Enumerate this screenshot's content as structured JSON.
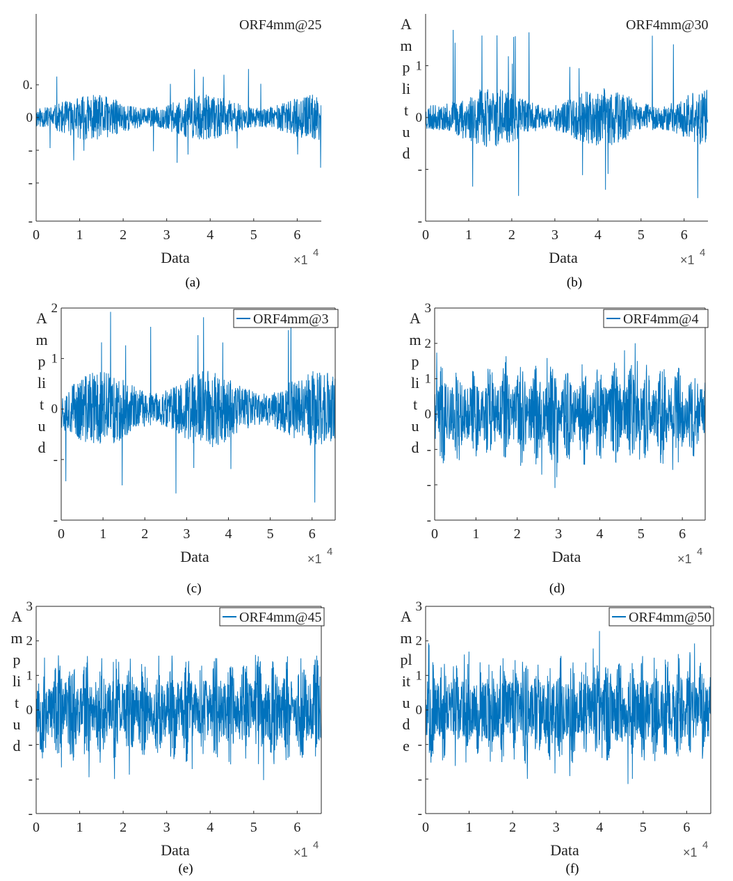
{
  "chart_data": [
    {
      "type": "line",
      "caption": "(a)",
      "series": [
        {
          "name": "ORF4mm@25"
        }
      ],
      "legend_box": false,
      "xlabel": "Data",
      "x_multiplier": "×1",
      "x_exponent": "4",
      "ylabel_letters": [],
      "xlim": [
        0,
        65536
      ],
      "x_ticks": [
        0,
        1,
        2,
        3,
        4,
        5,
        6
      ],
      "x_tick_labels": [
        "0",
        "1",
        "2",
        "3",
        "4",
        "5",
        "6"
      ],
      "ylim": [
        -1.9,
        1.9
      ],
      "y_ticks": [
        0.6,
        0,
        -0.6,
        -1.2,
        -1.9
      ],
      "y_tick_labels": [
        "0.",
        "0",
        "-",
        "-",
        "-"
      ],
      "signal": {
        "seed": 11,
        "base": 0.22,
        "peak": 0.95,
        "burst_period": 0
      }
    },
    {
      "type": "line",
      "caption": "(b)",
      "series": [
        {
          "name": "ORF4mm@30"
        }
      ],
      "legend_box": false,
      "xlabel": "Data",
      "x_multiplier": "×1",
      "x_exponent": "4",
      "ylabel_letters": [
        "A",
        "m",
        "p",
        "li",
        "t",
        "u",
        "d"
      ],
      "xlim": [
        0,
        65536
      ],
      "x_ticks": [
        0,
        1,
        2,
        3,
        4,
        5,
        6
      ],
      "x_tick_labels": [
        "0",
        "1",
        "2",
        "3",
        "4",
        "5",
        "6"
      ],
      "ylim": [
        -2,
        2
      ],
      "y_ticks": [
        1,
        0,
        -1,
        -2
      ],
      "y_tick_labels": [
        "1",
        "0",
        "-",
        "-"
      ],
      "signal": {
        "seed": 23,
        "base": 0.3,
        "peak": 1.7,
        "burst_period": 0
      }
    },
    {
      "type": "line",
      "caption": "(c)",
      "series": [
        {
          "name": "ORF4mm@3"
        }
      ],
      "legend_box": true,
      "xlabel": "Data",
      "x_multiplier": "×1",
      "x_exponent": "4",
      "ylabel_letters": [
        "A",
        "m",
        "p",
        "li",
        "t",
        "u",
        "d"
      ],
      "xlim": [
        0,
        65536
      ],
      "x_ticks": [
        0,
        1,
        2,
        3,
        4,
        5,
        6
      ],
      "x_tick_labels": [
        "0",
        "1",
        "2",
        "3",
        "4",
        "5",
        "6"
      ],
      "ylim": [
        -2.2,
        2
      ],
      "y_ticks": [
        2,
        1,
        0,
        -1,
        -2.2
      ],
      "y_tick_labels": [
        "2",
        "1",
        "0",
        "-",
        "-"
      ],
      "signal": {
        "seed": 37,
        "base": 0.4,
        "peak": 1.95,
        "burst_period": 0
      }
    },
    {
      "type": "line",
      "caption": "(d)",
      "series": [
        {
          "name": "ORF4mm@4"
        }
      ],
      "legend_box": true,
      "xlabel": "Data",
      "x_multiplier": "×1",
      "x_exponent": "4",
      "ylabel_letters": [
        "A",
        "m",
        "p",
        "li",
        "t",
        "u",
        "d"
      ],
      "xlim": [
        0,
        65536
      ],
      "x_ticks": [
        0,
        1,
        2,
        3,
        4,
        5,
        6
      ],
      "x_tick_labels": [
        "0",
        "1",
        "2",
        "3",
        "4",
        "5",
        "6"
      ],
      "ylim": [
        -3,
        3
      ],
      "y_ticks": [
        3,
        2,
        1,
        0,
        -1,
        -2,
        -3
      ],
      "y_tick_labels": [
        "3",
        "2",
        "1",
        "0",
        "-",
        "-",
        "-"
      ],
      "signal": {
        "seed": 41,
        "base": 0.55,
        "peak": 2.1,
        "burst_period": 3800
      }
    },
    {
      "type": "line",
      "caption": "(e)",
      "series": [
        {
          "name": "ORF4mm@45"
        }
      ],
      "legend_box": true,
      "xlabel": "Data",
      "x_multiplier": "×1",
      "x_exponent": "4",
      "ylabel_letters": [
        "A",
        "m",
        "p",
        "li",
        "t",
        "u",
        "d"
      ],
      "xlim": [
        0,
        65536
      ],
      "x_ticks": [
        0,
        1,
        2,
        3,
        4,
        5,
        6
      ],
      "x_tick_labels": [
        "0",
        "1",
        "2",
        "3",
        "4",
        "5",
        "6"
      ],
      "ylim": [
        -3,
        3
      ],
      "y_ticks": [
        3,
        2,
        1,
        0,
        -1,
        -2,
        -3
      ],
      "y_tick_labels": [
        "3",
        "2",
        "1",
        "0",
        "-",
        "-",
        "-"
      ],
      "signal": {
        "seed": 53,
        "base": 0.6,
        "peak": 2.3,
        "burst_period": 3300
      }
    },
    {
      "type": "line",
      "caption": "(f)",
      "series": [
        {
          "name": "ORF4mm@50"
        }
      ],
      "legend_box": true,
      "xlabel": "Data",
      "x_multiplier": "×1",
      "x_exponent": "4",
      "ylabel_letters": [
        "A",
        "m",
        "pl",
        "it",
        "u",
        "d",
        "e"
      ],
      "xlim": [
        0,
        65536
      ],
      "x_ticks": [
        0,
        1,
        2,
        3,
        4,
        5,
        6
      ],
      "x_tick_labels": [
        "0",
        "1",
        "2",
        "3",
        "4",
        "5",
        "6"
      ],
      "ylim": [
        -3,
        3
      ],
      "y_ticks": [
        3,
        2,
        1,
        0,
        -1,
        -2,
        -3
      ],
      "y_tick_labels": [
        "3",
        "2",
        "1",
        "0",
        "-",
        "-",
        "-"
      ],
      "signal": {
        "seed": 67,
        "base": 0.6,
        "peak": 2.5,
        "burst_period": 2700
      }
    }
  ],
  "style": {
    "line_color": "#0072BD",
    "axis_color": "#262626"
  }
}
